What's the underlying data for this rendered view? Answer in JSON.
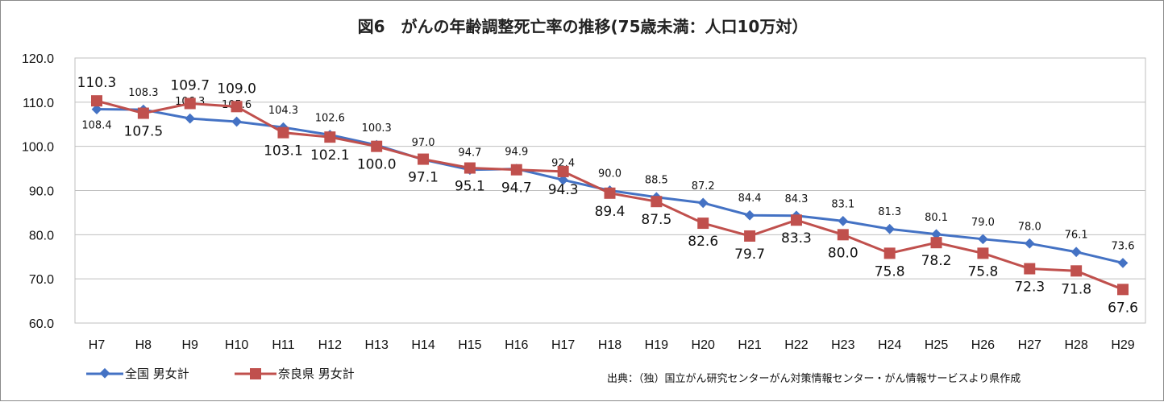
{
  "chart_data": {
    "type": "line",
    "title": "図6　がんの年齢調整死亡率の推移(75歳未満：人口10万対）",
    "categories": [
      "H7",
      "H8",
      "H9",
      "H10",
      "H11",
      "H12",
      "H13",
      "H14",
      "H15",
      "H16",
      "H17",
      "H18",
      "H19",
      "H20",
      "H21",
      "H22",
      "H23",
      "H24",
      "H25",
      "H26",
      "H27",
      "H28",
      "H29"
    ],
    "ylim": [
      60,
      120
    ],
    "yticks": [
      "60.0",
      "70.0",
      "80.0",
      "90.0",
      "100.0",
      "110.0",
      "120.0"
    ],
    "grid": true,
    "legend_placement": "bottom-left",
    "series": [
      {
        "name": "全国 男女計",
        "color": "#4472C4",
        "marker": "diamond",
        "values": [
          108.4,
          108.3,
          106.3,
          105.6,
          104.3,
          102.6,
          100.3,
          97.0,
          94.7,
          94.9,
          92.4,
          90.0,
          88.5,
          87.2,
          84.4,
          84.3,
          83.1,
          81.3,
          80.1,
          79.0,
          78.0,
          76.1,
          73.6
        ]
      },
      {
        "name": "奈良県 男女計",
        "color": "#C0504D",
        "marker": "square",
        "values": [
          110.3,
          107.5,
          109.7,
          109.0,
          103.1,
          102.1,
          100.0,
          97.1,
          95.1,
          94.7,
          94.3,
          89.4,
          87.5,
          82.6,
          79.7,
          83.3,
          80.0,
          75.8,
          78.2,
          75.8,
          72.3,
          71.8,
          67.6
        ]
      }
    ],
    "source": "出典：（独）国立がん研究センターがん対策情報センター・がん情報サービスより県作成"
  }
}
